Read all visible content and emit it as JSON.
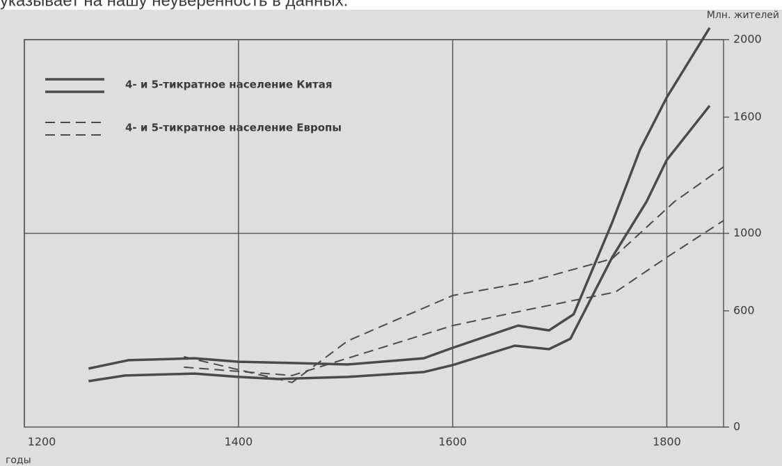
{
  "caption": "указывает на нашу неуверенность в данных.",
  "chart_data": {
    "type": "line",
    "y_axis_label": "Млн. жителей",
    "x_axis_label": "годы",
    "xlim": [
      1200,
      1853
    ],
    "ylim": [
      0,
      2000
    ],
    "xticks": [
      1200,
      1400,
      1600,
      1800
    ],
    "yticks": [
      0,
      600,
      1000,
      1600,
      2000
    ],
    "ygrid": [
      1000,
      2000
    ],
    "series": [
      {
        "name": "4- и 5-тикратное население Китая",
        "color": "#4a4a4a",
        "dashed": false,
        "x": [
          1260,
          1297,
          1359,
          1400,
          1456,
          1502,
          1573,
          1600,
          1661,
          1690,
          1713,
          1749,
          1775,
          1800,
          1840
        ],
        "values": [
          302,
          345,
          355,
          337,
          330,
          323,
          355,
          409,
          524,
          499,
          582,
          1056,
          1433,
          1702,
          2061
        ]
      },
      {
        "color": "#4a4a4a",
        "dashed": false,
        "x": [
          1260,
          1294,
          1359,
          1400,
          1437,
          1502,
          1573,
          1600,
          1658,
          1690,
          1710,
          1749,
          1781,
          1800,
          1840
        ],
        "values": [
          237,
          266,
          276,
          259,
          248,
          259,
          284,
          320,
          420,
          402,
          456,
          876,
          1163,
          1379,
          1659
        ]
      },
      {
        "name": "4- и 5-тикратное население Европы",
        "color": "#4a4a4a",
        "dashed": true,
        "x": [
          1349,
          1450,
          1502,
          1600,
          1671,
          1749,
          1807,
          1853
        ],
        "values": [
          363,
          230,
          445,
          679,
          750,
          869,
          1163,
          1343
        ]
      },
      {
        "color": "#4a4a4a",
        "dashed": true,
        "x": [
          1349,
          1450,
          1600,
          1671,
          1752,
          1800,
          1853
        ],
        "values": [
          309,
          266,
          524,
          607,
          697,
          876,
          1066
        ]
      }
    ]
  }
}
